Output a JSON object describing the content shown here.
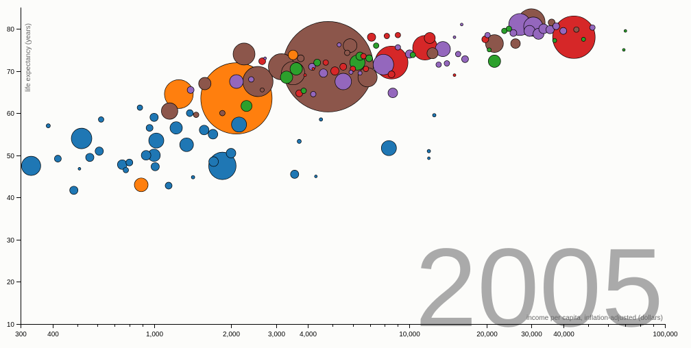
{
  "chart_data": {
    "type": "scatter",
    "year_label": "2005",
    "xlabel": "income per capita, inflation-adjusted (dollars)",
    "ylabel": "life expectancy (years)",
    "xscale": "log",
    "xlim": [
      300,
      100000
    ],
    "ylim": [
      10,
      85
    ],
    "x_ticks": [
      {
        "value": 300,
        "label": "300"
      },
      {
        "value": 400,
        "label": "400"
      },
      {
        "value": 1000,
        "label": "1,000"
      },
      {
        "value": 2000,
        "label": "2,000"
      },
      {
        "value": 3000,
        "label": "3,000"
      },
      {
        "value": 4000,
        "label": "4,000"
      },
      {
        "value": 10000,
        "label": "10,000"
      },
      {
        "value": 20000,
        "label": "20,000"
      },
      {
        "value": 30000,
        "label": "30,000"
      },
      {
        "value": 40000,
        "label": "40,000"
      },
      {
        "value": 100000,
        "label": "100,000"
      }
    ],
    "x_minor_ticks": [
      500,
      600,
      700,
      800,
      900,
      5000,
      6000,
      7000,
      8000,
      9000,
      50000,
      60000,
      70000,
      80000,
      90000
    ],
    "y_ticks": [
      10,
      20,
      30,
      40,
      50,
      60,
      70,
      80
    ],
    "colors": {
      "blue": "#1f77b4",
      "orange": "#ff7f0e",
      "green": "#2ca02c",
      "red": "#d62728",
      "purple": "#9467bd",
      "brown": "#8c564b"
    },
    "points": [
      {
        "x": 4800,
        "y": 71,
        "r": 66,
        "c": "brown"
      },
      {
        "x": 2100,
        "y": 63.5,
        "r": 52,
        "c": "orange"
      },
      {
        "x": 44000,
        "y": 78,
        "r": 31,
        "c": "red"
      },
      {
        "x": 30000,
        "y": 81.5,
        "r": 20,
        "c": "brown"
      },
      {
        "x": 2550,
        "y": 67.5,
        "r": 22,
        "c": "brown"
      },
      {
        "x": 8500,
        "y": 72,
        "r": 24,
        "c": "red"
      },
      {
        "x": 1850,
        "y": 47.5,
        "r": 20,
        "c": "blue"
      },
      {
        "x": 1250,
        "y": 64.5,
        "r": 21,
        "c": "orange"
      },
      {
        "x": 3150,
        "y": 71,
        "r": 19,
        "c": "brown"
      },
      {
        "x": 3500,
        "y": 69.5,
        "r": 17,
        "c": "brown"
      },
      {
        "x": 520,
        "y": 54,
        "r": 15,
        "c": "blue"
      },
      {
        "x": 330,
        "y": 47.5,
        "r": 14,
        "c": "blue"
      },
      {
        "x": 2250,
        "y": 74,
        "r": 16,
        "c": "brown"
      },
      {
        "x": 11500,
        "y": 75.5,
        "r": 18,
        "c": "red"
      },
      {
        "x": 6850,
        "y": 68.5,
        "r": 14,
        "c": "brown"
      },
      {
        "x": 7900,
        "y": 71.5,
        "r": 15,
        "c": "purple"
      },
      {
        "x": 27000,
        "y": 81,
        "r": 16,
        "c": "purple"
      },
      {
        "x": 30500,
        "y": 80.5,
        "r": 14,
        "c": "purple"
      },
      {
        "x": 1020,
        "y": 53.5,
        "r": 11,
        "c": "blue"
      },
      {
        "x": 1340,
        "y": 52.5,
        "r": 10,
        "c": "blue"
      },
      {
        "x": 1220,
        "y": 56.5,
        "r": 9,
        "c": "blue"
      },
      {
        "x": 2150,
        "y": 57.3,
        "r": 11,
        "c": "blue"
      },
      {
        "x": 8300,
        "y": 51.7,
        "r": 11,
        "c": "blue"
      },
      {
        "x": 1000,
        "y": 50,
        "r": 9,
        "c": "blue"
      },
      {
        "x": 21500,
        "y": 76.5,
        "r": 13,
        "c": "brown"
      },
      {
        "x": 6250,
        "y": 72,
        "r": 11,
        "c": "green"
      },
      {
        "x": 5850,
        "y": 76,
        "r": 10,
        "c": "brown"
      },
      {
        "x": 13500,
        "y": 75.2,
        "r": 11,
        "c": "purple"
      },
      {
        "x": 5500,
        "y": 67.5,
        "r": 12,
        "c": "purple"
      },
      {
        "x": 1150,
        "y": 60.5,
        "r": 12,
        "c": "brown"
      },
      {
        "x": 1580,
        "y": 67,
        "r": 9,
        "c": "brown"
      },
      {
        "x": 2100,
        "y": 67.5,
        "r": 10,
        "c": "purple"
      },
      {
        "x": 12000,
        "y": 77.8,
        "r": 8,
        "c": "red"
      },
      {
        "x": 21500,
        "y": 72.3,
        "r": 9,
        "c": "green"
      },
      {
        "x": 3600,
        "y": 70.5,
        "r": 9,
        "c": "green"
      },
      {
        "x": 3300,
        "y": 68.5,
        "r": 9,
        "c": "green"
      },
      {
        "x": 2300,
        "y": 61.7,
        "r": 8,
        "c": "green"
      },
      {
        "x": 890,
        "y": 43,
        "r": 10,
        "c": "orange"
      },
      {
        "x": 1710,
        "y": 48.5,
        "r": 7,
        "c": "blue"
      },
      {
        "x": 1700,
        "y": 55,
        "r": 7,
        "c": "blue"
      },
      {
        "x": 1570,
        "y": 56,
        "r": 7,
        "c": "blue"
      },
      {
        "x": 2000,
        "y": 50.5,
        "r": 7,
        "c": "blue"
      },
      {
        "x": 930,
        "y": 50,
        "r": 7,
        "c": "blue"
      },
      {
        "x": 750,
        "y": 47.8,
        "r": 7,
        "c": "blue"
      },
      {
        "x": 560,
        "y": 49.5,
        "r": 6,
        "c": "blue"
      },
      {
        "x": 610,
        "y": 51,
        "r": 6,
        "c": "blue"
      },
      {
        "x": 1010,
        "y": 47.3,
        "r": 6,
        "c": "blue"
      },
      {
        "x": 800,
        "y": 48.3,
        "r": 5,
        "c": "blue"
      },
      {
        "x": 775,
        "y": 46.5,
        "r": 4,
        "c": "blue"
      },
      {
        "x": 960,
        "y": 56.5,
        "r": 5,
        "c": "blue"
      },
      {
        "x": 880,
        "y": 61.3,
        "r": 4,
        "c": "blue"
      },
      {
        "x": 1380,
        "y": 60,
        "r": 5,
        "c": "blue"
      },
      {
        "x": 1140,
        "y": 42.8,
        "r": 5,
        "c": "blue"
      },
      {
        "x": 485,
        "y": 41.7,
        "r": 6,
        "c": "blue"
      },
      {
        "x": 420,
        "y": 49.2,
        "r": 5,
        "c": "blue"
      },
      {
        "x": 1000,
        "y": 59,
        "r": 6,
        "c": "blue"
      },
      {
        "x": 620,
        "y": 58.5,
        "r": 4,
        "c": "blue"
      },
      {
        "x": 385,
        "y": 57,
        "r": 3,
        "c": "blue"
      },
      {
        "x": 3550,
        "y": 45.5,
        "r": 6,
        "c": "blue"
      },
      {
        "x": 1420,
        "y": 44.8,
        "r": 2.5,
        "c": "blue"
      },
      {
        "x": 3700,
        "y": 53.3,
        "r": 3,
        "c": "blue"
      },
      {
        "x": 4300,
        "y": 45,
        "r": 2,
        "c": "blue"
      },
      {
        "x": 4500,
        "y": 58.5,
        "r": 2.5,
        "c": "blue"
      },
      {
        "x": 12500,
        "y": 59.5,
        "r": 2.5,
        "c": "blue"
      },
      {
        "x": 11900,
        "y": 51,
        "r": 2.5,
        "c": "blue"
      },
      {
        "x": 11900,
        "y": 49.3,
        "r": 2,
        "c": "blue"
      },
      {
        "x": 510,
        "y": 46.8,
        "r": 2,
        "c": "blue"
      },
      {
        "x": 1460,
        "y": 59.6,
        "r": 4,
        "c": "brown"
      },
      {
        "x": 1850,
        "y": 60,
        "r": 4,
        "c": "brown"
      },
      {
        "x": 1390,
        "y": 65.5,
        "r": 5,
        "c": "purple"
      },
      {
        "x": 2650,
        "y": 65.5,
        "r": 3,
        "c": "brown"
      },
      {
        "x": 2650,
        "y": 72.3,
        "r": 5,
        "c": "red"
      },
      {
        "x": 2400,
        "y": 68,
        "r": 4,
        "c": "purple"
      },
      {
        "x": 3500,
        "y": 73.8,
        "r": 7,
        "c": "orange"
      },
      {
        "x": 3750,
        "y": 73,
        "r": 5,
        "c": "brown"
      },
      {
        "x": 3700,
        "y": 64.7,
        "r": 5,
        "c": "red"
      },
      {
        "x": 3850,
        "y": 65.3,
        "r": 4,
        "c": "green"
      },
      {
        "x": 4150,
        "y": 71,
        "r": 5,
        "c": "purple"
      },
      {
        "x": 4350,
        "y": 72,
        "r": 5,
        "c": "green"
      },
      {
        "x": 4600,
        "y": 69.5,
        "r": 6,
        "c": "purple"
      },
      {
        "x": 5100,
        "y": 70,
        "r": 6,
        "c": "red"
      },
      {
        "x": 4700,
        "y": 72,
        "r": 4,
        "c": "red"
      },
      {
        "x": 5500,
        "y": 71,
        "r": 5,
        "c": "red"
      },
      {
        "x": 5700,
        "y": 74.3,
        "r": 4,
        "c": "brown"
      },
      {
        "x": 6000,
        "y": 70.5,
        "r": 4,
        "c": "red"
      },
      {
        "x": 6400,
        "y": 73.5,
        "r": 6,
        "c": "green"
      },
      {
        "x": 6600,
        "y": 73.5,
        "r": 4,
        "c": "red"
      },
      {
        "x": 7100,
        "y": 78,
        "r": 6,
        "c": "red"
      },
      {
        "x": 7400,
        "y": 76,
        "r": 4,
        "c": "green"
      },
      {
        "x": 6950,
        "y": 73,
        "r": 5,
        "c": "green"
      },
      {
        "x": 6750,
        "y": 70.5,
        "r": 4,
        "c": "red"
      },
      {
        "x": 5300,
        "y": 76.2,
        "r": 3,
        "c": "purple"
      },
      {
        "x": 8150,
        "y": 78.3,
        "r": 4,
        "c": "red"
      },
      {
        "x": 8500,
        "y": 69.2,
        "r": 5,
        "c": "red"
      },
      {
        "x": 8600,
        "y": 64.8,
        "r": 7,
        "c": "purple"
      },
      {
        "x": 9000,
        "y": 75.6,
        "r": 4,
        "c": "purple"
      },
      {
        "x": 10000,
        "y": 74,
        "r": 6,
        "c": "purple"
      },
      {
        "x": 10300,
        "y": 73.8,
        "r": 4,
        "c": "green"
      },
      {
        "x": 12300,
        "y": 74.2,
        "r": 8,
        "c": "brown"
      },
      {
        "x": 13000,
        "y": 71.5,
        "r": 4,
        "c": "purple"
      },
      {
        "x": 14000,
        "y": 71.8,
        "r": 4,
        "c": "purple"
      },
      {
        "x": 15500,
        "y": 74,
        "r": 4,
        "c": "purple"
      },
      {
        "x": 16500,
        "y": 72.8,
        "r": 5,
        "c": "purple"
      },
      {
        "x": 15000,
        "y": 69,
        "r": 2,
        "c": "red"
      },
      {
        "x": 19800,
        "y": 77.5,
        "r": 5,
        "c": "red"
      },
      {
        "x": 20200,
        "y": 78.5,
        "r": 4,
        "c": "purple"
      },
      {
        "x": 20500,
        "y": 75,
        "r": 3,
        "c": "green"
      },
      {
        "x": 23500,
        "y": 79.5,
        "r": 4,
        "c": "green"
      },
      {
        "x": 24500,
        "y": 80,
        "r": 4,
        "c": "green"
      },
      {
        "x": 25500,
        "y": 79,
        "r": 5,
        "c": "purple"
      },
      {
        "x": 26000,
        "y": 76.5,
        "r": 7,
        "c": "brown"
      },
      {
        "x": 29500,
        "y": 79.5,
        "r": 8,
        "c": "purple"
      },
      {
        "x": 32000,
        "y": 78.8,
        "r": 8,
        "c": "purple"
      },
      {
        "x": 33500,
        "y": 80,
        "r": 7,
        "c": "purple"
      },
      {
        "x": 35500,
        "y": 79.8,
        "r": 6,
        "c": "purple"
      },
      {
        "x": 36000,
        "y": 81.5,
        "r": 5,
        "c": "brown"
      },
      {
        "x": 37000,
        "y": 77.2,
        "r": 3,
        "c": "green"
      },
      {
        "x": 40000,
        "y": 79.5,
        "r": 5,
        "c": "purple"
      },
      {
        "x": 37500,
        "y": 80.6,
        "r": 5,
        "c": "purple"
      },
      {
        "x": 45000,
        "y": 79.8,
        "r": 4,
        "c": "brown"
      },
      {
        "x": 52000,
        "y": 80.3,
        "r": 4,
        "c": "purple"
      },
      {
        "x": 48000,
        "y": 77.5,
        "r": 3,
        "c": "green"
      },
      {
        "x": 70000,
        "y": 79.5,
        "r": 2,
        "c": "green"
      },
      {
        "x": 69000,
        "y": 75,
        "r": 2,
        "c": "green"
      },
      {
        "x": 15000,
        "y": 78,
        "r": 2,
        "c": "purple"
      },
      {
        "x": 9000,
        "y": 78.5,
        "r": 4,
        "c": "red"
      },
      {
        "x": 16000,
        "y": 81,
        "r": 2,
        "c": "purple"
      },
      {
        "x": 2720,
        "y": 73,
        "r": 2,
        "c": "purple"
      },
      {
        "x": 6400,
        "y": 69.5,
        "r": 3,
        "c": "purple"
      },
      {
        "x": 4200,
        "y": 70.5,
        "r": 2,
        "c": "red"
      },
      {
        "x": 3900,
        "y": 69,
        "r": 2,
        "c": "red"
      },
      {
        "x": 5900,
        "y": 69.7,
        "r": 3,
        "c": "purple"
      },
      {
        "x": 4200,
        "y": 64.5,
        "r": 4,
        "c": "purple"
      }
    ]
  }
}
